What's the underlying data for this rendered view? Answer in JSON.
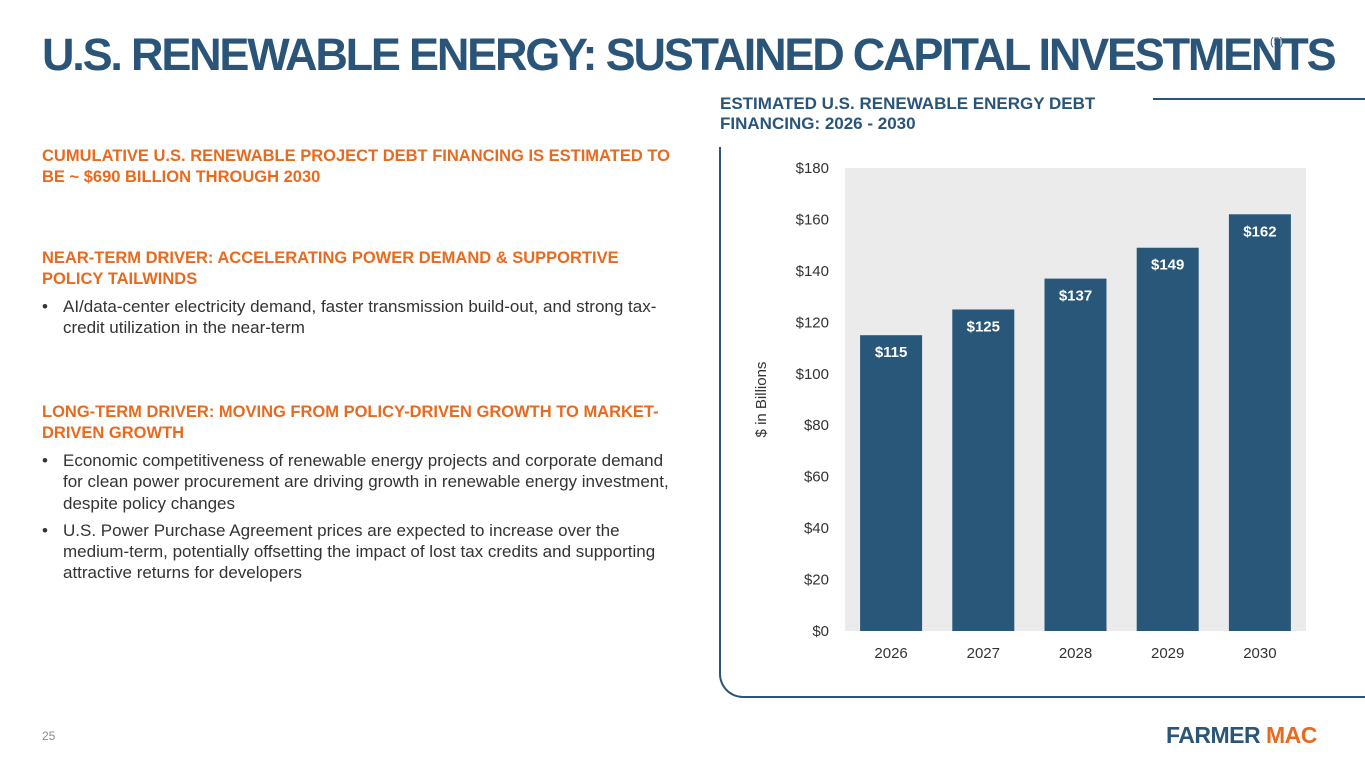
{
  "header": {
    "title": "U.S. RENEWABLE ENERGY: SUSTAINED CAPITAL INVESTMENTS",
    "footnote": "(5)"
  },
  "content": {
    "summary": "CUMULATIVE U.S. RENEWABLE PROJECT DEBT FINANCING IS ESTIMATED TO BE ~ $690 BILLION THROUGH 2030",
    "near_term": {
      "heading": "NEAR-TERM DRIVER: ACCELERATING POWER DEMAND & SUPPORTIVE POLICY TAILWINDS",
      "bullets": [
        "AI/data-center electricity demand, faster transmission build-out, and strong tax-credit utilization in the near-term"
      ]
    },
    "long_term": {
      "heading": "LONG-TERM DRIVER: MOVING FROM POLICY-DRIVEN GROWTH TO MARKET-DRIVEN GROWTH",
      "bullets": [
        "Economic competitiveness of renewable energy projects and corporate demand for clean power procurement are driving growth in renewable energy investment, despite policy changes",
        "U.S. Power Purchase Agreement prices are expected to increase over the medium-term, potentially offsetting the impact of lost tax credits and supporting attractive returns for developers"
      ]
    }
  },
  "chart_data": {
    "type": "bar",
    "title": "ESTIMATED U.S. RENEWABLE ENERGY DEBT FINANCING: 2026 - 2030",
    "categories": [
      "2026",
      "2027",
      "2028",
      "2029",
      "2030"
    ],
    "values": [
      115,
      125,
      137,
      149,
      162
    ],
    "data_labels": [
      "$115",
      "$125",
      "$137",
      "$149",
      "$162"
    ],
    "xlabel": "",
    "ylabel": "$ in Billions",
    "ylim": [
      0,
      180
    ],
    "yticks": [
      0,
      20,
      40,
      60,
      80,
      100,
      120,
      140,
      160,
      180
    ],
    "ytick_labels": [
      "$0",
      "$20",
      "$40",
      "$60",
      "$80",
      "$100",
      "$120",
      "$140",
      "$160",
      "$180"
    ],
    "grid": false,
    "legend": "none",
    "colors": {
      "bar": "#285779",
      "plot_bg": "#ebebeb",
      "label": "#ffffff"
    }
  },
  "footer": {
    "page_number": "25",
    "logo_part1": "FARMER",
    "logo_part2": "MAC"
  },
  "colors": {
    "navy": "#2a5579",
    "orange": "#e86a1f",
    "text": "#333333"
  }
}
